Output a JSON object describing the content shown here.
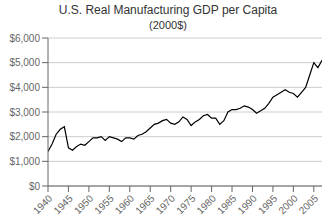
{
  "chart_data": {
    "type": "line",
    "title": "U.S. Real Manufacturing GDP per Capita",
    "subtitle": "(2000$)",
    "x": [
      1940,
      1941,
      1942,
      1943,
      1944,
      1945,
      1946,
      1947,
      1948,
      1949,
      1950,
      1951,
      1952,
      1953,
      1954,
      1955,
      1956,
      1957,
      1958,
      1959,
      1960,
      1961,
      1962,
      1963,
      1964,
      1965,
      1966,
      1967,
      1968,
      1969,
      1970,
      1971,
      1972,
      1973,
      1974,
      1975,
      1976,
      1977,
      1978,
      1979,
      1980,
      1981,
      1982,
      1983,
      1984,
      1985,
      1986,
      1987,
      1988,
      1989,
      1990,
      1991,
      1992,
      1993,
      1994,
      1995,
      1996,
      1997,
      1998,
      1999,
      2000,
      2001,
      2002,
      2003,
      2004,
      2005,
      2006,
      2007
    ],
    "values": [
      1400,
      1700,
      2100,
      2300,
      2400,
      1550,
      1450,
      1600,
      1700,
      1650,
      1800,
      1950,
      1950,
      2000,
      1850,
      2000,
      1950,
      1900,
      1800,
      1950,
      1950,
      1900,
      2050,
      2100,
      2200,
      2350,
      2500,
      2550,
      2650,
      2700,
      2550,
      2500,
      2600,
      2800,
      2700,
      2450,
      2600,
      2700,
      2850,
      2900,
      2750,
      2750,
      2500,
      2650,
      3000,
      3100,
      3100,
      3150,
      3250,
      3200,
      3100,
      2950,
      3050,
      3150,
      3350,
      3600,
      3700,
      3800,
      3900,
      3800,
      3750,
      3600,
      3800,
      4000,
      4500,
      5000,
      4800,
      5100
    ],
    "color": "#000000",
    "xlim": [
      1940,
      2007
    ],
    "ylim": [
      0,
      6000
    ],
    "xticks": [
      1940,
      1945,
      1950,
      1955,
      1960,
      1965,
      1970,
      1975,
      1980,
      1985,
      1990,
      1995,
      2000,
      2005
    ],
    "yticks": [
      {
        "value": 0,
        "label": "$0"
      },
      {
        "value": 1000,
        "label": "$1,000"
      },
      {
        "value": 2000,
        "label": "$2,000"
      },
      {
        "value": 3000,
        "label": "$3,000"
      },
      {
        "value": 4000,
        "label": "$4,000"
      },
      {
        "value": 5000,
        "label": "$5,000"
      },
      {
        "value": 6000,
        "label": "$6,000"
      }
    ],
    "grid": true
  }
}
